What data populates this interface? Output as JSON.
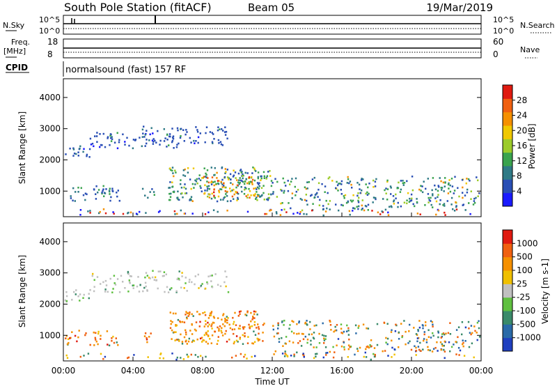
{
  "header": {
    "station": "South Pole Station (fitACF)",
    "beam": "Beam 05",
    "date": "19/Mar/2019"
  },
  "noise_panel": {
    "left_label": "N.Sky",
    "right_label": "N.Search",
    "left_ticks": [
      "10^5",
      "10^0"
    ],
    "right_ticks": [
      "10^5",
      "10^0"
    ]
  },
  "freq_panel": {
    "left_label_1": "Freq.",
    "left_label_2": "[MHz]",
    "right_label": "Nave",
    "left_ticks": [
      "18",
      "8"
    ],
    "right_ticks": [
      "60",
      "0"
    ]
  },
  "cpid": {
    "label": "CPID",
    "value": "normalsound (fast) 157 RF"
  },
  "chart_data": [
    {
      "type": "heatmap",
      "name": "power",
      "ylabel": "Slant Range [km]",
      "yticks": [
        1000,
        2000,
        3000,
        4000
      ],
      "ylim": [
        180,
        4600
      ],
      "xlim": [
        0,
        24
      ],
      "colorbar": {
        "label": "Power [dB]",
        "ticks": [
          "4",
          "8",
          "12",
          "16",
          "20",
          "24",
          "28"
        ],
        "colors": [
          "#1a1aff",
          "#2a4fb5",
          "#2f7a86",
          "#3aa34e",
          "#9ccb2a",
          "#f0c800",
          "#f59000",
          "#f06010",
          "#e01a10"
        ]
      }
    },
    {
      "type": "heatmap",
      "name": "velocity",
      "ylabel": "Slant Range [km]",
      "yticks": [
        1000,
        2000,
        3000,
        4000
      ],
      "ylim": [
        180,
        4600
      ],
      "xlim": [
        0,
        24
      ],
      "xlabel": "Time UT",
      "xticks": [
        "00:00",
        "04:00",
        "08:00",
        "12:00",
        "16:00",
        "20:00",
        "00:00"
      ],
      "colorbar": {
        "label": "Velocity [m s-1]",
        "ticks": [
          "1000",
          "500",
          "100",
          "25",
          "-25",
          "-100",
          "-500",
          "-1000"
        ],
        "colors": [
          "#1f3fbf",
          "#2a6aa8",
          "#3a8a6a",
          "#5fc040",
          "#c0c0c0",
          "#f0c000",
          "#f59000",
          "#f06010",
          "#e01a10"
        ]
      }
    }
  ]
}
